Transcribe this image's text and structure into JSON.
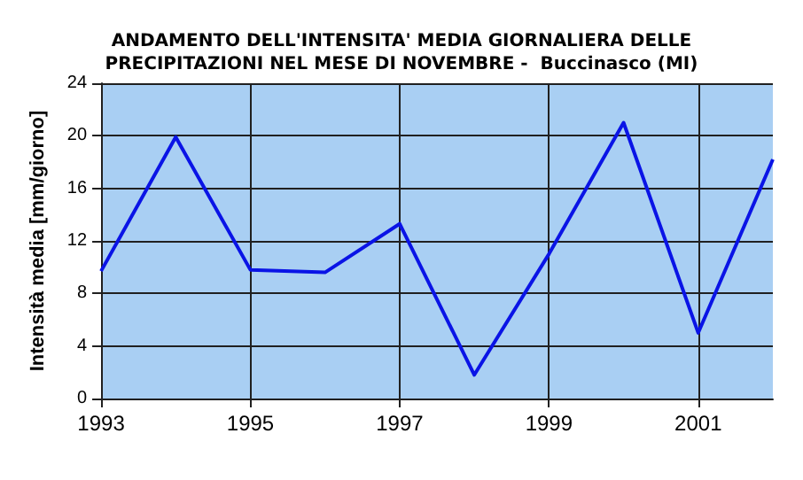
{
  "chart_data": {
    "type": "line",
    "title": "ANDAMENTO DELL'INTENSITA' MEDIA GIORNALIERA DELLE\nPRECIPITAZIONI NEL MESE DI NOVEMBRE -  Buccinasco (MI)",
    "ylabel": "Intensità media [mm/giorno]",
    "x": [
      1993,
      1994,
      1995,
      1996,
      1997,
      1998,
      1999,
      2000,
      2001,
      2002
    ],
    "series": [
      {
        "color": "#0a14e6",
        "values": [
          9.7,
          19.9,
          9.8,
          9.6,
          13.3,
          1.8,
          11,
          21,
          5,
          18.2
        ]
      }
    ],
    "xlim": [
      1993,
      2002
    ],
    "xticks": [
      1993,
      1995,
      1997,
      1999,
      2001
    ],
    "ylim": [
      0,
      24
    ],
    "yticks": [
      0,
      4,
      8,
      12,
      16,
      20,
      24
    ],
    "grid": true,
    "marker": "none",
    "line_style": "solid"
  }
}
